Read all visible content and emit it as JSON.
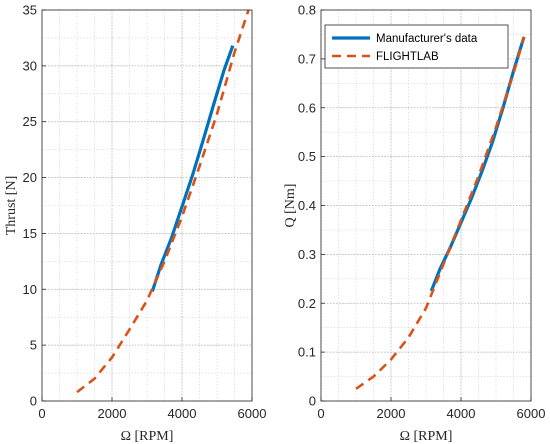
{
  "colors": {
    "manufacturer": "#0072BD",
    "flightlab": "#D95319",
    "axis": "#262626",
    "grid": "#c8c8c8"
  },
  "chart_data": [
    {
      "type": "line",
      "xlabel": "Ω [RPM]",
      "ylabel": "Thrust [N]",
      "xlim": [
        0,
        6000
      ],
      "ylim": [
        0,
        35
      ],
      "xticks": [
        0,
        2000,
        4000,
        6000
      ],
      "yticks": [
        0,
        5,
        10,
        15,
        20,
        25,
        30,
        35
      ],
      "minor_grid": true,
      "series": [
        {
          "name": "Manufacturer's data",
          "style": "solid",
          "x": [
            3150,
            3400,
            3700,
            4000,
            4300,
            4600,
            4900,
            5200,
            5450
          ],
          "y": [
            9.8,
            12.2,
            14.6,
            17.4,
            20.2,
            23.3,
            26.5,
            29.6,
            31.8
          ]
        },
        {
          "name": "FLIGHTLAB",
          "style": "dashed",
          "x": [
            1000,
            1500,
            2000,
            2500,
            3000,
            3500,
            4000,
            4500,
            5000,
            5500,
            5900
          ],
          "y": [
            0.8,
            2.0,
            3.9,
            6.4,
            9.0,
            12.5,
            16.5,
            21.0,
            25.7,
            31.2,
            35.0
          ]
        }
      ]
    },
    {
      "type": "line",
      "xlabel": "Ω [RPM]",
      "ylabel": "Q [Nm]",
      "xlim": [
        0,
        6000
      ],
      "ylim": [
        0,
        0.8
      ],
      "xticks": [
        0,
        2000,
        4000,
        6000
      ],
      "yticks": [
        0,
        0.1,
        0.2,
        0.3,
        0.4,
        0.5,
        0.6,
        0.7,
        0.8
      ],
      "minor_grid": true,
      "legend": "top-left",
      "series": [
        {
          "name": "Manufacturer's data",
          "style": "solid",
          "x": [
            3150,
            3400,
            3700,
            4000,
            4300,
            4600,
            4900,
            5200,
            5500,
            5800
          ],
          "y": [
            0.225,
            0.27,
            0.315,
            0.365,
            0.415,
            0.47,
            0.53,
            0.6,
            0.675,
            0.745
          ]
        },
        {
          "name": "FLIGHTLAB",
          "style": "dashed",
          "x": [
            1000,
            1500,
            2000,
            2500,
            3000,
            3500,
            4000,
            4500,
            5000,
            5500,
            5800
          ],
          "y": [
            0.025,
            0.05,
            0.085,
            0.13,
            0.19,
            0.28,
            0.37,
            0.46,
            0.56,
            0.67,
            0.745
          ]
        }
      ]
    }
  ]
}
